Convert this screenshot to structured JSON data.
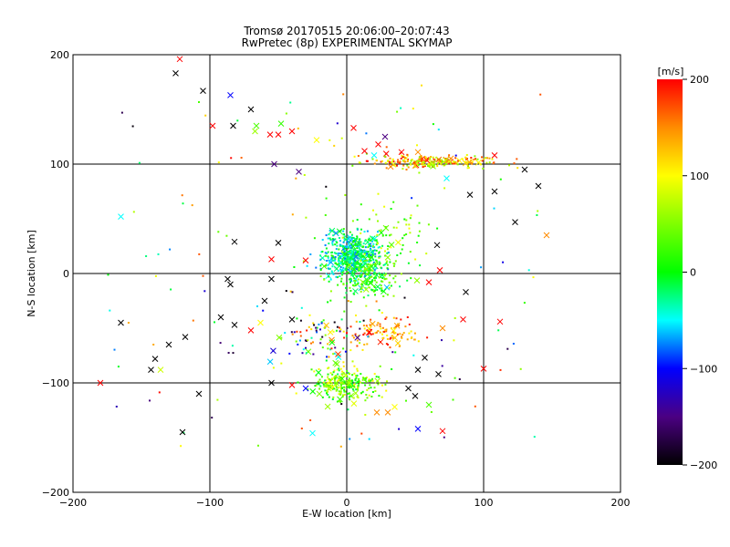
{
  "title_line1": "Tromsø 20170515 20:06:00–20:07:43",
  "title_line2": "RwPretec (8p) EXPERIMENTAL SKYMAP",
  "chart_data": {
    "type": "scatter",
    "title": "Tromsø 20170515 20:06:00–20:07:43 RwPretec (8p) EXPERIMENTAL SKYMAP",
    "xlabel": "E-W location [km]",
    "ylabel": "N-S location [km]",
    "xlim": [
      -200,
      200
    ],
    "ylim": [
      -200,
      200
    ],
    "xticks": [
      -200,
      -100,
      0,
      100,
      200
    ],
    "yticks": [
      -200,
      -100,
      0,
      100,
      200
    ],
    "xtick_labels": [
      "−200",
      "−100",
      "0",
      "100",
      "200"
    ],
    "ytick_labels": [
      "−200",
      "−100",
      "0",
      "100",
      "200"
    ],
    "grid": true,
    "colorbar": {
      "label": "[m/s]",
      "range": [
        -200,
        200
      ],
      "ticks": [
        200,
        100,
        0,
        -100,
        -200
      ],
      "tick_labels": [
        "200",
        "100",
        "0",
        "−100",
        "−200"
      ],
      "stops": [
        {
          "value": 200,
          "color": "#ff0000"
        },
        {
          "value": 150,
          "color": "#ff8c00"
        },
        {
          "value": 100,
          "color": "#ffff00"
        },
        {
          "value": 50,
          "color": "#7fff00"
        },
        {
          "value": 0,
          "color": "#00ff00"
        },
        {
          "value": -50,
          "color": "#00ffff"
        },
        {
          "value": -100,
          "color": "#0000ff"
        },
        {
          "value": -150,
          "color": "#4b0082"
        },
        {
          "value": -200,
          "color": "#000000"
        }
      ]
    },
    "large_markers": [
      {
        "x": -122,
        "y": 196,
        "v": 200
      },
      {
        "x": -125,
        "y": 183,
        "v": -200
      },
      {
        "x": -105,
        "y": 167,
        "v": -200
      },
      {
        "x": -85,
        "y": 163,
        "v": -100
      },
      {
        "x": -70,
        "y": 150,
        "v": -200
      },
      {
        "x": -98,
        "y": 135,
        "v": 200
      },
      {
        "x": -83,
        "y": 135,
        "v": -200
      },
      {
        "x": -66,
        "y": 135,
        "v": 30
      },
      {
        "x": -67,
        "y": 130,
        "v": 60
      },
      {
        "x": -48,
        "y": 137,
        "v": 20
      },
      {
        "x": -50,
        "y": 127,
        "v": 200
      },
      {
        "x": -40,
        "y": 130,
        "v": 200
      },
      {
        "x": -56,
        "y": 127,
        "v": 200
      },
      {
        "x": -22,
        "y": 122,
        "v": 100
      },
      {
        "x": 5,
        "y": 133,
        "v": 200
      },
      {
        "x": 28,
        "y": 125,
        "v": -150
      },
      {
        "x": 23,
        "y": 118,
        "v": 200
      },
      {
        "x": 13,
        "y": 112,
        "v": 200
      },
      {
        "x": 20,
        "y": 108,
        "v": -50
      },
      {
        "x": 40,
        "y": 111,
        "v": 200
      },
      {
        "x": 52,
        "y": 111,
        "v": 150
      },
      {
        "x": 63,
        "y": 98,
        "v": 50
      },
      {
        "x": 108,
        "y": 108,
        "v": 200
      },
      {
        "x": 130,
        "y": 95,
        "v": -200
      },
      {
        "x": 140,
        "y": 80,
        "v": -200
      },
      {
        "x": 108,
        "y": 75,
        "v": -200
      },
      {
        "x": 90,
        "y": 72,
        "v": -200
      },
      {
        "x": 73,
        "y": 87,
        "v": -50
      },
      {
        "x": -53,
        "y": 100,
        "v": -150
      },
      {
        "x": -35,
        "y": 93,
        "v": -150
      },
      {
        "x": -165,
        "y": 52,
        "v": -50
      },
      {
        "x": 123,
        "y": 47,
        "v": -200
      },
      {
        "x": 146,
        "y": 35,
        "v": 150
      },
      {
        "x": -82,
        "y": 29,
        "v": -200
      },
      {
        "x": -50,
        "y": 28,
        "v": -200
      },
      {
        "x": 66,
        "y": 26,
        "v": -200
      },
      {
        "x": -55,
        "y": 13,
        "v": 200
      },
      {
        "x": -30,
        "y": 12,
        "v": 200
      },
      {
        "x": 68,
        "y": 3,
        "v": 200
      },
      {
        "x": -87,
        "y": -5,
        "v": -200
      },
      {
        "x": -85,
        "y": -10,
        "v": -200
      },
      {
        "x": -55,
        "y": -5,
        "v": -200
      },
      {
        "x": 60,
        "y": -8,
        "v": 200
      },
      {
        "x": 87,
        "y": -17,
        "v": -200
      },
      {
        "x": -60,
        "y": -25,
        "v": -200
      },
      {
        "x": -40,
        "y": -42,
        "v": -200
      },
      {
        "x": -92,
        "y": -40,
        "v": -200
      },
      {
        "x": -82,
        "y": -47,
        "v": -200
      },
      {
        "x": -63,
        "y": -45,
        "v": 100
      },
      {
        "x": -70,
        "y": -52,
        "v": 200
      },
      {
        "x": 85,
        "y": -42,
        "v": 200
      },
      {
        "x": 112,
        "y": -44,
        "v": 200
      },
      {
        "x": 70,
        "y": -50,
        "v": 150
      },
      {
        "x": -165,
        "y": -45,
        "v": -200
      },
      {
        "x": -130,
        "y": -65,
        "v": -200
      },
      {
        "x": -118,
        "y": -58,
        "v": -200
      },
      {
        "x": -140,
        "y": -78,
        "v": -200
      },
      {
        "x": -143,
        "y": -88,
        "v": -200
      },
      {
        "x": -136,
        "y": -88,
        "v": 80
      },
      {
        "x": 57,
        "y": -77,
        "v": -200
      },
      {
        "x": 52,
        "y": -88,
        "v": -200
      },
      {
        "x": 67,
        "y": -92,
        "v": -200
      },
      {
        "x": 100,
        "y": -87,
        "v": 200
      },
      {
        "x": -180,
        "y": -100,
        "v": 200
      },
      {
        "x": -108,
        "y": -110,
        "v": -200
      },
      {
        "x": -120,
        "y": -145,
        "v": -200
      },
      {
        "x": -25,
        "y": -146,
        "v": -50
      },
      {
        "x": 45,
        "y": -105,
        "v": -200
      },
      {
        "x": 50,
        "y": -112,
        "v": -200
      },
      {
        "x": 60,
        "y": -120,
        "v": 30
      },
      {
        "x": 35,
        "y": -122,
        "v": 100
      },
      {
        "x": 52,
        "y": -142,
        "v": -100
      },
      {
        "x": 70,
        "y": -144,
        "v": 200
      },
      {
        "x": 30,
        "y": -127,
        "v": 150
      },
      {
        "x": 22,
        "y": -127,
        "v": 150
      },
      {
        "x": -55,
        "y": -100,
        "v": -200
      },
      {
        "x": -40,
        "y": -102,
        "v": 200
      },
      {
        "x": -30,
        "y": -105,
        "v": -100
      },
      {
        "x": -20,
        "y": -110,
        "v": 50
      },
      {
        "x": -5,
        "y": -115,
        "v": 20
      }
    ],
    "dense_clusters": [
      {
        "cx": 5,
        "cy": 15,
        "sx": 18,
        "sy": 18,
        "n": 520,
        "vmin": -80,
        "vmax": 20
      },
      {
        "cx": 15,
        "cy": -3,
        "sx": 22,
        "sy": 18,
        "n": 180,
        "vmin": -20,
        "vmax": 70
      },
      {
        "cx": 60,
        "cy": 102,
        "sx": 35,
        "sy": 5,
        "n": 230,
        "vmin": 40,
        "vmax": 200
      },
      {
        "cx": 0,
        "cy": -100,
        "sx": 22,
        "sy": 12,
        "n": 260,
        "vmin": -20,
        "vmax": 110
      },
      {
        "cx": 25,
        "cy": -55,
        "sx": 20,
        "sy": 14,
        "n": 100,
        "vmin": 100,
        "vmax": 200
      },
      {
        "cx": -20,
        "cy": -60,
        "sx": 28,
        "sy": 20,
        "n": 90,
        "vmin": -200,
        "vmax": 200
      },
      {
        "cx": 30,
        "cy": 40,
        "sx": 25,
        "sy": 25,
        "n": 60,
        "vmin": 0,
        "vmax": 100
      }
    ],
    "scatter_background": {
      "n": 260,
      "xmin": -175,
      "xmax": 145,
      "ymin": -160,
      "ymax": 175
    }
  }
}
